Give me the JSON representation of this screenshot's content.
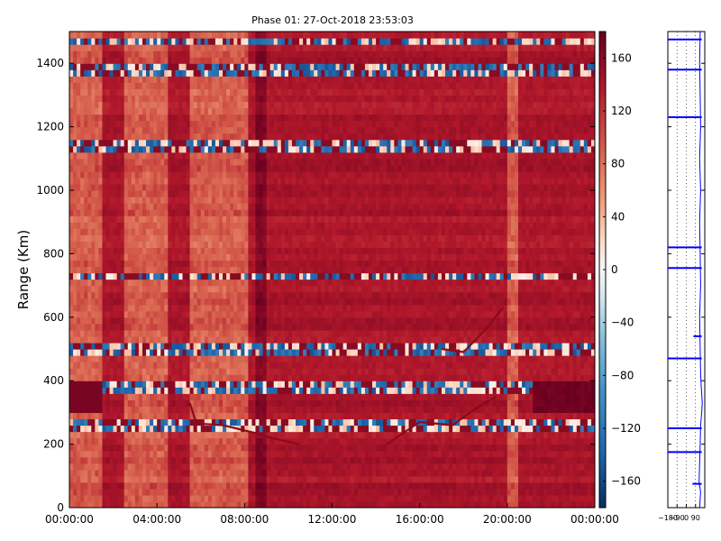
{
  "chart_data": [
    {
      "type": "heatmap",
      "title": "Phase 01: 27-Oct-2018 23:53:03",
      "ylabel": "Range (Km)",
      "xlabel": "",
      "xlim": [
        "00:00:00",
        "24:00:00"
      ],
      "ylim": [
        0,
        1500
      ],
      "x_tick_labels": [
        "00:00:00",
        "04:00:00",
        "08:00:00",
        "12:00:00",
        "16:00:00",
        "20:00:00",
        "00:00:00"
      ],
      "y_ticks": [
        0,
        200,
        400,
        600,
        800,
        1000,
        1200,
        1400
      ],
      "colorbar": {
        "range": [
          -180,
          180
        ],
        "ticks": [
          160,
          120,
          80,
          40,
          0,
          -40,
          -80,
          -120,
          -160
        ],
        "colormap": "RdBu_r",
        "high_color": "#67001f",
        "mid_color": "#f7f7f7",
        "low_color": "#053061"
      },
      "background_phase_deg": 140,
      "dark_column_hour_range": [
        8.5,
        9.0
      ],
      "light_column_hour_ranges": [
        [
          0.0,
          1.5
        ],
        [
          2.5,
          4.5
        ],
        [
          5.5,
          8.2
        ],
        [
          20.0,
          20.5
        ]
      ],
      "high_phase_region": {
        "x_hours": [
          0,
          1.5
        ],
        "range_km": [
          300,
          400
        ],
        "phase_deg": 170
      },
      "low_phase_region": {
        "x_hours": [
          21.2,
          24
        ],
        "range_km": [
          300,
          400
        ],
        "phase_deg": 175
      },
      "bright_range_rows_km": [
        1475,
        1380,
        1140,
        730,
        500,
        380,
        260
      ],
      "feature_lines": [
        {
          "name": "descending trace",
          "points": [
            [
              5.5,
              330
            ],
            [
              5.8,
              265
            ],
            [
              7.0,
              260
            ],
            [
              8.5,
              235
            ],
            [
              9.2,
              220
            ],
            [
              10.5,
              200
            ]
          ]
        },
        {
          "name": "ascending trace",
          "points": [
            [
              14.5,
              200
            ],
            [
              16.0,
              270
            ],
            [
              17.5,
              260
            ],
            [
              18.5,
              310
            ],
            [
              19.5,
              350
            ]
          ]
        },
        {
          "name": "arc trace",
          "points": [
            [
              17.0,
              500
            ],
            [
              18.0,
              490
            ],
            [
              19.0,
              560
            ],
            [
              19.8,
              630
            ]
          ]
        }
      ]
    },
    {
      "type": "line",
      "title": "",
      "x_tick_labels": [
        "−180",
        "−90",
        "0",
        "90"
      ],
      "xlim": [
        -180,
        180
      ],
      "ylim": [
        0,
        1500
      ],
      "series_color": "#0000ff",
      "profile": [
        [
          0,
          130
        ],
        [
          50,
          140
        ],
        [
          80,
          125
        ],
        [
          200,
          135
        ],
        [
          260,
          140
        ],
        [
          300,
          150
        ],
        [
          330,
          155
        ],
        [
          360,
          150
        ],
        [
          385,
          145
        ],
        [
          420,
          140
        ],
        [
          500,
          135
        ],
        [
          600,
          130
        ],
        [
          700,
          140
        ],
        [
          800,
          135
        ],
        [
          900,
          130
        ],
        [
          1000,
          140
        ],
        [
          1100,
          130
        ],
        [
          1200,
          140
        ],
        [
          1300,
          135
        ],
        [
          1400,
          130
        ],
        [
          1500,
          135
        ]
      ],
      "spikes": [
        {
          "range_km": 1475,
          "from": -180,
          "to": 150
        },
        {
          "range_km": 1380,
          "from": -180,
          "to": 150
        },
        {
          "range_km": 1230,
          "from": -180,
          "to": 150
        },
        {
          "range_km": 820,
          "from": -180,
          "to": 150
        },
        {
          "range_km": 755,
          "from": -180,
          "to": 150
        },
        {
          "range_km": 540,
          "from": 70,
          "to": 150
        },
        {
          "range_km": 470,
          "from": -180,
          "to": 150
        },
        {
          "range_km": 250,
          "from": -180,
          "to": 150
        },
        {
          "range_km": 175,
          "from": -180,
          "to": 150
        },
        {
          "range_km": 75,
          "from": 60,
          "to": 150
        }
      ]
    }
  ]
}
